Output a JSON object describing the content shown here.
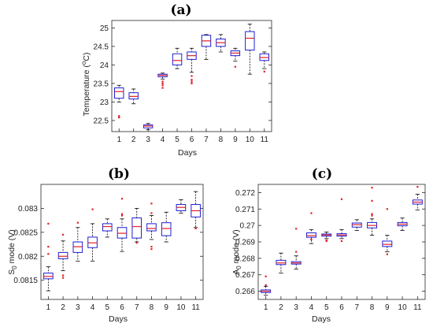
{
  "figure_labels": {
    "a": "(a)",
    "b": "(b)",
    "c": "(c)"
  },
  "chart_data": [
    {
      "type": "box",
      "title": "(a)",
      "xlabel": "Days",
      "ylabel": "Temperature (°C)",
      "ylabel_parts": {
        "prefix": "Temperature (",
        "sup": "o",
        "suffix": "C)"
      },
      "categories": [
        "1",
        "2",
        "3",
        "4",
        "5",
        "6",
        "7",
        "8",
        "9",
        "10",
        "11"
      ],
      "ylim": [
        22.2,
        25.2
      ],
      "yticks": [
        22.5,
        23,
        23.5,
        24,
        24.5,
        25
      ],
      "ytick_labels": [
        "22.5",
        "23",
        "23.5",
        "24",
        "24.5",
        "25"
      ],
      "colors": {
        "box": "#1f1fd6",
        "median": "#e0202a",
        "whisker": "#000000",
        "outlier": "#e0202a"
      },
      "boxes": [
        {
          "q1": 23.1,
          "median": 23.28,
          "q3": 23.38,
          "lo": 23.0,
          "hi": 23.45,
          "outliers": [
            22.58,
            22.62
          ]
        },
        {
          "q1": 23.08,
          "median": 23.15,
          "q3": 23.25,
          "lo": 22.95,
          "hi": 23.35,
          "outliers": []
        },
        {
          "q1": 22.3,
          "median": 22.35,
          "q3": 22.38,
          "lo": 22.25,
          "hi": 22.42,
          "outliers": []
        },
        {
          "q1": 23.68,
          "median": 23.72,
          "q3": 23.75,
          "lo": 23.62,
          "hi": 23.78,
          "outliers": [
            23.55,
            23.5,
            23.45,
            23.38
          ]
        },
        {
          "q1": 24.0,
          "median": 24.12,
          "q3": 24.3,
          "lo": 23.9,
          "hi": 24.45,
          "outliers": []
        },
        {
          "q1": 24.15,
          "median": 24.25,
          "q3": 24.35,
          "lo": 23.8,
          "hi": 24.45,
          "outliers": [
            23.7,
            23.6,
            23.55,
            23.5
          ]
        },
        {
          "q1": 24.5,
          "median": 24.65,
          "q3": 24.8,
          "lo": 24.15,
          "hi": 24.82,
          "outliers": []
        },
        {
          "q1": 24.5,
          "median": 24.6,
          "q3": 24.7,
          "lo": 24.35,
          "hi": 24.82,
          "outliers": []
        },
        {
          "q1": 24.25,
          "median": 24.32,
          "q3": 24.38,
          "lo": 24.1,
          "hi": 24.45,
          "outliers": [
            23.95
          ]
        },
        {
          "q1": 24.4,
          "median": 24.72,
          "q3": 24.9,
          "lo": 23.75,
          "hi": 25.1,
          "outliers": []
        },
        {
          "q1": 24.12,
          "median": 24.2,
          "q3": 24.3,
          "lo": 23.9,
          "hi": 24.35,
          "outliers": [
            23.82
          ]
        }
      ]
    },
    {
      "type": "box",
      "title": "(b)",
      "xlabel": "Days",
      "ylabel": "S0 mode (V)",
      "ylabel_parts": {
        "prefix": "S",
        "sub": "0",
        "suffix": " mode (V)"
      },
      "categories": [
        "1",
        "2",
        "3",
        "4",
        "5",
        "6",
        "7",
        "8",
        "9",
        "10",
        "11"
      ],
      "ylim": [
        0.0811,
        0.0835
      ],
      "yticks": [
        0.0815,
        0.082,
        0.0825,
        0.083
      ],
      "ytick_labels": [
        "0.0815",
        "0.082",
        "0.0825",
        "0.083"
      ],
      "colors": {
        "box": "#1f1fd6",
        "median": "#e0202a",
        "whisker": "#000000",
        "outlier": "#e0202a"
      },
      "boxes": [
        {
          "q1": 0.08153,
          "median": 0.08158,
          "q3": 0.08165,
          "lo": 0.08128,
          "hi": 0.08178,
          "outliers": [
            0.08268,
            0.0822,
            0.08205
          ]
        },
        {
          "q1": 0.08195,
          "median": 0.082,
          "q3": 0.08208,
          "lo": 0.0817,
          "hi": 0.08232,
          "outliers": [
            0.08245,
            0.0816,
            0.08155
          ]
        },
        {
          "q1": 0.08208,
          "median": 0.0822,
          "q3": 0.0823,
          "lo": 0.0819,
          "hi": 0.0826,
          "outliers": [
            0.0827
          ]
        },
        {
          "q1": 0.08218,
          "median": 0.08228,
          "q3": 0.0824,
          "lo": 0.0819,
          "hi": 0.08268,
          "outliers": [
            0.08298
          ]
        },
        {
          "q1": 0.08253,
          "median": 0.08262,
          "q3": 0.08268,
          "lo": 0.0824,
          "hi": 0.08278,
          "outliers": []
        },
        {
          "q1": 0.08238,
          "median": 0.08248,
          "q3": 0.0826,
          "lo": 0.0821,
          "hi": 0.08278,
          "outliers": [
            0.0832,
            0.08285,
            0.08288
          ]
        },
        {
          "q1": 0.08238,
          "median": 0.08262,
          "q3": 0.0828,
          "lo": 0.0823,
          "hi": 0.083,
          "outliers": [
            0.08228
          ]
        },
        {
          "q1": 0.08253,
          "median": 0.08258,
          "q3": 0.08268,
          "lo": 0.08235,
          "hi": 0.08285,
          "outliers": [
            0.0831,
            0.0829,
            0.0822,
            0.08215
          ]
        },
        {
          "q1": 0.08243,
          "median": 0.08258,
          "q3": 0.0827,
          "lo": 0.0823,
          "hi": 0.08292,
          "outliers": []
        },
        {
          "q1": 0.08295,
          "median": 0.08302,
          "q3": 0.08308,
          "lo": 0.0829,
          "hi": 0.08318,
          "outliers": []
        },
        {
          "q1": 0.08282,
          "median": 0.08295,
          "q3": 0.08308,
          "lo": 0.0826,
          "hi": 0.08335,
          "outliers": [
            0.08258
          ]
        }
      ]
    },
    {
      "type": "box",
      "title": "(c)",
      "xlabel": "Days",
      "ylabel": "A0 mode (V)",
      "ylabel_parts": {
        "prefix": "A",
        "sub": "0",
        "suffix": " mode (V)"
      },
      "categories": [
        "1",
        "2",
        "3",
        "4",
        "5",
        "6",
        "7",
        "8",
        "9",
        "10",
        "11"
      ],
      "ylim": [
        0.2655,
        0.2725
      ],
      "yticks": [
        0.266,
        0.267,
        0.268,
        0.269,
        0.27,
        0.271,
        0.272
      ],
      "ytick_labels": [
        "0.266",
        "0.267",
        "0.268",
        "0.269",
        "0.27",
        "0.271",
        "0.272"
      ],
      "colors": {
        "box": "#1f1fd6",
        "median": "#e0202a",
        "whisker": "#000000",
        "outlier": "#e0202a"
      },
      "boxes": [
        {
          "q1": 0.26592,
          "median": 0.266,
          "q3": 0.26608,
          "lo": 0.26575,
          "hi": 0.2663,
          "outliers": [
            0.2669,
            0.26637
          ]
        },
        {
          "q1": 0.26762,
          "median": 0.26772,
          "q3": 0.26788,
          "lo": 0.2671,
          "hi": 0.26832,
          "outliers": []
        },
        {
          "q1": 0.26765,
          "median": 0.26772,
          "q3": 0.2678,
          "lo": 0.26735,
          "hi": 0.26815,
          "outliers": [
            0.2698,
            0.2684
          ]
        },
        {
          "q1": 0.26928,
          "median": 0.26938,
          "q3": 0.26955,
          "lo": 0.2689,
          "hi": 0.26975,
          "outliers": [
            0.27075,
            0.26915
          ]
        },
        {
          "q1": 0.26935,
          "median": 0.26942,
          "q3": 0.26948,
          "lo": 0.2692,
          "hi": 0.2696,
          "outliers": [
            0.2691,
            0.26905
          ]
        },
        {
          "q1": 0.26935,
          "median": 0.26942,
          "q3": 0.2695,
          "lo": 0.2692,
          "hi": 0.26975,
          "outliers": [
            0.2716,
            0.26905
          ]
        },
        {
          "q1": 0.2699,
          "median": 0.27005,
          "q3": 0.27015,
          "lo": 0.2697,
          "hi": 0.27035,
          "outliers": []
        },
        {
          "q1": 0.26985,
          "median": 0.27,
          "q3": 0.27018,
          "lo": 0.2694,
          "hi": 0.2704,
          "outliers": [
            0.2723,
            0.2715,
            0.2707,
            0.2706
          ]
        },
        {
          "q1": 0.26872,
          "median": 0.26885,
          "q3": 0.26905,
          "lo": 0.2684,
          "hi": 0.2694,
          "outliers": [
            0.271,
            0.26825
          ]
        },
        {
          "q1": 0.26998,
          "median": 0.27008,
          "q3": 0.27018,
          "lo": 0.2697,
          "hi": 0.27045,
          "outliers": []
        },
        {
          "q1": 0.2713,
          "median": 0.27142,
          "q3": 0.27155,
          "lo": 0.27095,
          "hi": 0.2719,
          "outliers": [
            0.27235
          ]
        }
      ]
    }
  ]
}
